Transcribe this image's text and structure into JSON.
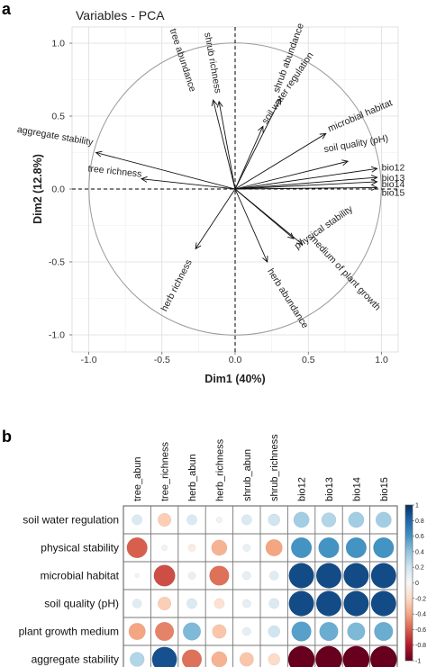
{
  "panel_labels": {
    "a": "a",
    "b": "b"
  },
  "chart_data": [
    {
      "type": "scatter",
      "subtype": "pca-variable-correlation-circle",
      "title": "Variables - PCA",
      "xlabel": "Dim1 (40%)",
      "ylabel": "Dim2 (12.8%)",
      "xlim": [
        -1.05,
        1.05
      ],
      "ylim": [
        -1.05,
        1.05
      ],
      "xticks": [
        "-1.0",
        "-0.5",
        "0.0",
        "0.5",
        "1.0"
      ],
      "yticks": [
        "-1.0",
        "-0.5",
        "0.0",
        "0.5",
        "1.0"
      ],
      "grid": true,
      "unit_circle": true,
      "arrows": [
        {
          "label": "shrub richness",
          "x": -0.11,
          "y": 0.6
        },
        {
          "label": "tree abundance",
          "x": -0.15,
          "y": 0.61
        },
        {
          "label": "shrub abundance",
          "x": 0.31,
          "y": 0.62
        },
        {
          "label": "soil water regulation",
          "x": 0.19,
          "y": 0.43
        },
        {
          "label": "microbial habitat",
          "x": 0.62,
          "y": 0.38
        },
        {
          "label": "soil quality (pH)",
          "x": 0.77,
          "y": 0.19
        },
        {
          "label": "aggregate stability",
          "x": -0.95,
          "y": 0.25
        },
        {
          "label": "tree richness",
          "x": -0.64,
          "y": 0.07
        },
        {
          "label": "bio12",
          "x": 0.97,
          "y": 0.14
        },
        {
          "label": "bio13",
          "x": 0.97,
          "y": 0.08
        },
        {
          "label": "bio14",
          "x": 0.97,
          "y": 0.05
        },
        {
          "label": "bio15",
          "x": 0.97,
          "y": 0.01
        },
        {
          "label": "medium of plant growth",
          "x": 0.46,
          "y": -0.38
        },
        {
          "label": "physical stability",
          "x": 0.4,
          "y": -0.34
        },
        {
          "label": "herb abundance",
          "x": 0.22,
          "y": -0.5
        },
        {
          "label": "herb richness",
          "x": -0.27,
          "y": -0.41
        }
      ]
    },
    {
      "type": "heatmap",
      "subtype": "correlation-plot",
      "columns": [
        "tree_abun",
        "tree_richness",
        "herb_abun",
        "herb_richness",
        "shrub_abun",
        "shrub_richness",
        "bio12",
        "bio13",
        "bio14",
        "bio15"
      ],
      "rows": [
        "soil water regulation",
        "physical stability",
        "microbial habitat",
        "soil quality (pH)",
        "plant growth medium",
        "aggregate stability"
      ],
      "values": [
        [
          0.15,
          -0.25,
          0.15,
          0.05,
          0.15,
          0.2,
          0.35,
          0.3,
          0.35,
          0.35
        ],
        [
          -0.6,
          0.05,
          -0.08,
          -0.35,
          0.08,
          -0.4,
          0.6,
          0.6,
          0.6,
          0.6
        ],
        [
          0.03,
          -0.65,
          0.08,
          -0.55,
          0.1,
          0.12,
          0.9,
          0.9,
          0.9,
          0.9
        ],
        [
          0.12,
          -0.25,
          0.15,
          -0.15,
          0.1,
          0.15,
          0.9,
          0.9,
          0.9,
          0.9
        ],
        [
          -0.4,
          -0.5,
          0.45,
          -0.28,
          0.1,
          0.2,
          0.55,
          0.5,
          0.45,
          0.5
        ],
        [
          0.3,
          0.88,
          -0.55,
          -0.35,
          -0.28,
          -0.2,
          -1.0,
          -1.0,
          -1.0,
          -1.0
        ]
      ],
      "colorbar": {
        "range": [
          -1,
          1
        ],
        "ticks": [
          "1",
          "0.8",
          "0.6",
          "0.4",
          "0.2",
          "0",
          "-0.2",
          "-0.4",
          "-0.6",
          "-0.8",
          "-1"
        ],
        "colors": {
          "negative": "#67001f",
          "mid": "#f7f7f7",
          "positive": "#053061"
        }
      }
    }
  ]
}
